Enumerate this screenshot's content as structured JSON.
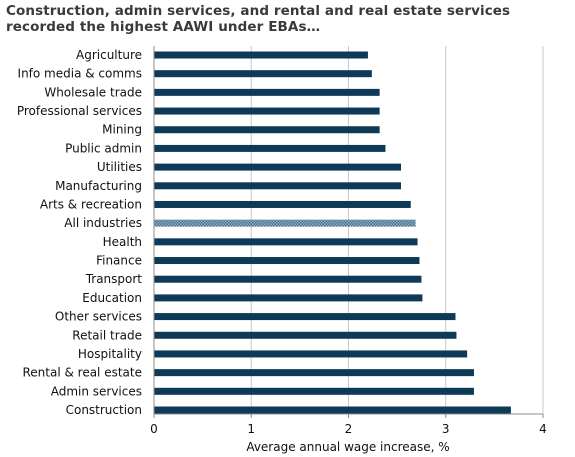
{
  "chart_data": {
    "type": "bar",
    "orientation": "horizontal",
    "title": "Construction, admin services, and rental and real estate services recorded the highest AAWI under EBAs…",
    "xlabel": "Average annual wage increase, %",
    "ylabel": "",
    "xlim": [
      0,
      4
    ],
    "xticks": [
      "0",
      "1",
      "2",
      "3",
      "4"
    ],
    "grid": true,
    "legend": "none",
    "categories": [
      "Agriculture",
      "Info media & comms",
      "Wholesale trade",
      "Professional services",
      "Mining",
      "Public admin",
      "Utilities",
      "Manufacturing",
      "Arts & recreation",
      "All industries",
      "Health",
      "Finance",
      "Transport",
      "Education",
      "Other services",
      "Retail trade",
      "Hospitality",
      "Rental & real estate",
      "Admin services",
      "Construction"
    ],
    "values": [
      2.2,
      2.24,
      2.32,
      2.32,
      2.32,
      2.38,
      2.54,
      2.54,
      2.64,
      2.69,
      2.71,
      2.73,
      2.75,
      2.76,
      3.1,
      3.11,
      3.22,
      3.29,
      3.29,
      3.67
    ],
    "highlight_category": "All industries",
    "colors": {
      "bar": "#0e3a57",
      "highlight": "#8fb0c6",
      "grid": "#c8c8c8",
      "axis": "#8c8c8c"
    }
  }
}
